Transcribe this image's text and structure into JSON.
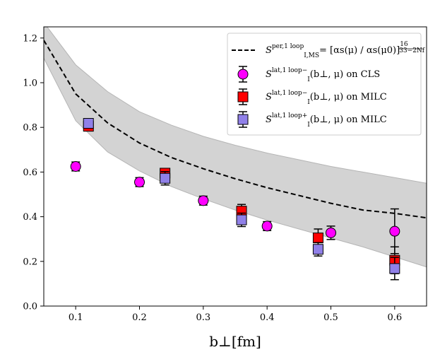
{
  "chart_data": {
    "type": "scatter",
    "xlabel": "b⊥[fm]",
    "ylabel": "",
    "xlim": [
      0.05,
      0.65
    ],
    "ylim": [
      0.0,
      1.25
    ],
    "x_ticks": [
      0.1,
      0.2,
      0.3,
      0.4,
      0.5,
      0.6
    ],
    "y_ticks": [
      0.0,
      0.2,
      0.4,
      0.6,
      0.8,
      1.0,
      1.2
    ],
    "x_tick_labels": [
      "0.1",
      "0.2",
      "0.3",
      "0.4",
      "0.5",
      "0.6"
    ],
    "y_tick_labels": [
      "0.0",
      "0.2",
      "0.4",
      "0.6",
      "0.8",
      "1.0",
      "1.2"
    ],
    "grid": false,
    "legend_position": "top-right",
    "band": {
      "name": "S_I,MS-bar^(per,1 loop) = [α_s(μ)/α_s(μ0)]^(16/(33−2Nf))",
      "x": [
        0.05,
        0.1,
        0.15,
        0.2,
        0.25,
        0.3,
        0.35,
        0.4,
        0.45,
        0.5,
        0.55,
        0.6,
        0.65
      ],
      "center": [
        1.19,
        0.95,
        0.82,
        0.73,
        0.665,
        0.615,
        0.57,
        0.53,
        0.495,
        0.46,
        0.43,
        0.415,
        0.395
      ],
      "upper": [
        1.27,
        1.08,
        0.96,
        0.87,
        0.81,
        0.76,
        0.72,
        0.685,
        0.655,
        0.625,
        0.6,
        0.575,
        0.55
      ],
      "lower": [
        1.11,
        0.83,
        0.69,
        0.605,
        0.535,
        0.48,
        0.43,
        0.385,
        0.345,
        0.305,
        0.265,
        0.22,
        0.175
      ]
    },
    "series": [
      {
        "name": "S_I^(lat,1 loop−)(b⊥, μ) on CLS",
        "marker": "circle",
        "color": "#ff00ff",
        "x": [
          0.1,
          0.2,
          0.3,
          0.4,
          0.5,
          0.6
        ],
        "y": [
          0.625,
          0.555,
          0.472,
          0.358,
          0.328,
          0.335
        ],
        "err": [
          0.02,
          0.02,
          0.02,
          0.02,
          0.03,
          0.1
        ]
      },
      {
        "name": "S_I^(lat,1 loop−)(b⊥, μ) on MILC",
        "marker": "square",
        "color": "#ff0000",
        "x": [
          0.12,
          0.24,
          0.36,
          0.48,
          0.6
        ],
        "y": [
          0.805,
          0.595,
          0.425,
          0.305,
          0.205
        ],
        "err": [
          0.02,
          0.02,
          0.03,
          0.04,
          0.06
        ]
      },
      {
        "name": "S_I^(lat,1 loop+)(b⊥, μ) on MILC",
        "marker": "square",
        "color": "#9080e8",
        "x": [
          0.12,
          0.24,
          0.36,
          0.48,
          0.6
        ],
        "y": [
          0.818,
          0.572,
          0.386,
          0.254,
          0.168
        ],
        "err": [
          0.02,
          0.03,
          0.03,
          0.03,
          0.05
        ]
      }
    ],
    "legend": {
      "band_label_lhs": "S",
      "band_label_sup": "per,1 loop",
      "band_label_sub": "I,MS",
      "band_label_rhs": "= [αs(μ) / αs(μ0)]",
      "band_label_exp_num": "16",
      "band_label_exp_den": "33−2Nf",
      "cls_sup": "lat,1 loop−",
      "cls_text": "(b⊥, μ) on CLS",
      "milc_minus_sup": "lat,1 loop−",
      "milc_minus_text": "(b⊥, μ) on MILC",
      "milc_plus_sup": "lat,1 loop+",
      "milc_plus_text": "(b⊥, μ) on MILC",
      "S": "S",
      "sub_I": "I"
    }
  }
}
